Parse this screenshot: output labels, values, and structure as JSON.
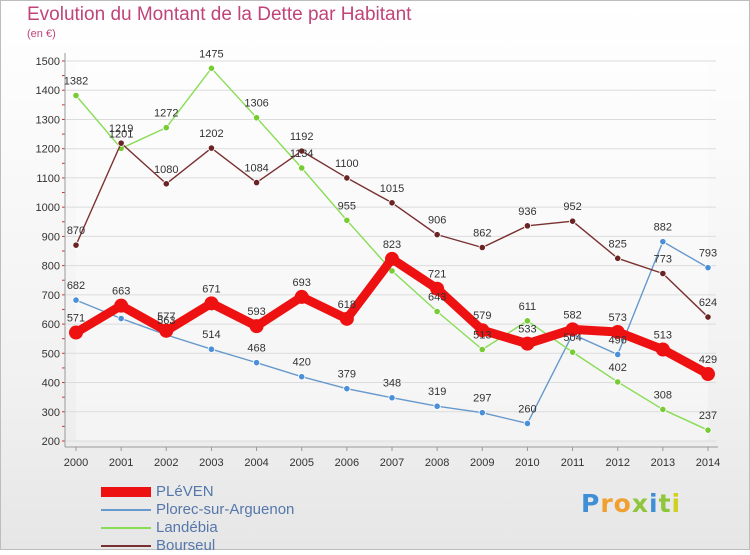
{
  "header": {
    "title": "Evolution du Montant de la Dette par Habitant",
    "subtitle": "(en €)"
  },
  "logo": {
    "text": "Proxiti",
    "letters": [
      "P",
      "r",
      "o",
      "x",
      "i",
      "t",
      "i"
    ]
  },
  "chart_data": {
    "type": "line",
    "title": "Evolution du Montant de la Dette par Habitant",
    "subtitle": "(en €)",
    "xlabel": "",
    "ylabel": "",
    "x": [
      "2000",
      "2001",
      "2002",
      "2003",
      "2004",
      "2005",
      "2006",
      "2007",
      "2008",
      "2009",
      "2010",
      "2011",
      "2012",
      "2013",
      "2014"
    ],
    "ylim": [
      200,
      1500
    ],
    "yticks": [
      200,
      300,
      400,
      500,
      600,
      700,
      800,
      900,
      1000,
      1100,
      1200,
      1300,
      1400,
      1500
    ],
    "grid": "horizontal",
    "legend_position": "bottom-left",
    "series": [
      {
        "name": "PLéVEN",
        "color": "#ee1111",
        "marker_color": "#ee1111",
        "emphasis": true,
        "values": [
          571,
          663,
          577,
          671,
          593,
          693,
          618,
          823,
          721,
          579,
          533,
          582,
          573,
          513,
          429
        ],
        "labels": [
          "571",
          "663",
          "577",
          "671",
          "593",
          "693",
          "618",
          "823",
          "721",
          "579",
          "533",
          "582",
          "573",
          "513",
          "429"
        ]
      },
      {
        "name": "Plorec-sur-Arguenon",
        "color": "#6699cc",
        "marker_color": "#4a8fd8",
        "values": [
          682,
          619,
          563,
          514,
          468,
          420,
          379,
          348,
          319,
          297,
          260,
          565,
          496,
          882,
          793
        ],
        "labels": [
          "682",
          "",
          "563",
          "514",
          "468",
          "420",
          "379",
          "348",
          "319",
          "297",
          "260",
          "",
          "496",
          "882",
          "793"
        ]
      },
      {
        "name": "Landébia",
        "color": "#88dd55",
        "marker_color": "#77cc33",
        "values": [
          1382,
          1201,
          1272,
          1475,
          1306,
          1134,
          955,
          782,
          643,
          513,
          611,
          504,
          402,
          308,
          237
        ],
        "labels": [
          "1382",
          "1201",
          "1272",
          "1475",
          "1306",
          "1134",
          "955",
          "",
          "643",
          "513",
          "611",
          "504",
          "402",
          "308",
          "237"
        ]
      },
      {
        "name": "Bourseul",
        "color": "#7a3030",
        "marker_color": "#6b2424",
        "values": [
          870,
          1219,
          1080,
          1202,
          1084,
          1192,
          1100,
          1015,
          906,
          862,
          936,
          952,
          825,
          773,
          624
        ],
        "labels": [
          "870",
          "1219",
          "1080",
          "1202",
          "1084",
          "1192",
          "1100",
          "1015",
          "906",
          "862",
          "936",
          "952",
          "825",
          "773",
          "624"
        ]
      }
    ]
  }
}
